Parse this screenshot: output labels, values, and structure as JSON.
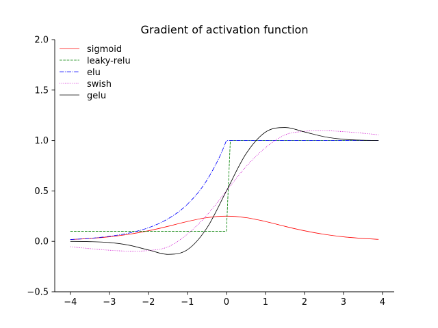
{
  "chart_data": {
    "type": "line",
    "title": "Gradient of activation function",
    "xlabel": "",
    "ylabel": "",
    "xlim": [
      -4.4,
      4.3
    ],
    "ylim": [
      -0.5,
      2.0
    ],
    "xticks": [
      -4,
      -3,
      -2,
      -1,
      0,
      1,
      2,
      3,
      4
    ],
    "xtick_labels": [
      "−4",
      "−3",
      "−2",
      "−1",
      "0",
      "1",
      "2",
      "3",
      "4"
    ],
    "yticks": [
      -0.5,
      0.0,
      0.5,
      1.0,
      1.5,
      2.0
    ],
    "ytick_labels": [
      "−0.5",
      "0.0",
      "0.5",
      "1.0",
      "1.5",
      "2.0"
    ],
    "grid": false,
    "legend": "top-left",
    "spines": "left-bottom",
    "series": [
      {
        "name": "sigmoid",
        "color": "#ff0000",
        "dash": "solid",
        "x": [
          -4,
          -3.5,
          -3,
          -2.5,
          -2,
          -1.5,
          -1,
          -0.5,
          0,
          0.5,
          1,
          1.5,
          2,
          2.5,
          3,
          3.5,
          3.9
        ],
        "y": [
          0.018,
          0.029,
          0.045,
          0.07,
          0.105,
          0.149,
          0.197,
          0.235,
          0.25,
          0.235,
          0.197,
          0.149,
          0.105,
          0.07,
          0.045,
          0.029,
          0.02
        ]
      },
      {
        "name": "leaky-relu",
        "color": "#008000",
        "dash": "dashed",
        "x": [
          -4,
          0,
          0.1,
          3.9
        ],
        "y": [
          0.1,
          0.1,
          1.0,
          1.0
        ]
      },
      {
        "name": "elu",
        "color": "#0000ff",
        "dash": "dashdot",
        "x": [
          -4,
          -3.5,
          -3,
          -2.5,
          -2,
          -1.5,
          -1,
          -0.5,
          0,
          0.5,
          1,
          2,
          3,
          3.9
        ],
        "y": [
          0.018,
          0.03,
          0.05,
          0.082,
          0.135,
          0.223,
          0.368,
          0.607,
          1.0,
          1.0,
          1.0,
          1.0,
          1.0,
          1.0
        ]
      },
      {
        "name": "swish",
        "color": "#cc00cc",
        "dash": "dotted",
        "x": [
          -4,
          -3.5,
          -3,
          -2.5,
          -2,
          -1.5,
          -1,
          -0.5,
          0,
          0.5,
          1,
          1.5,
          2,
          2.5,
          3,
          3.5,
          3.9
        ],
        "y": [
          -0.053,
          -0.072,
          -0.088,
          -0.097,
          -0.091,
          -0.055,
          0.072,
          0.26,
          0.5,
          0.74,
          0.928,
          1.055,
          1.091,
          1.097,
          1.088,
          1.072,
          1.056
        ]
      },
      {
        "name": "gelu",
        "color": "#000000",
        "dash": "solid",
        "x": [
          -4,
          -3.5,
          -3,
          -2.5,
          -2,
          -1.5,
          -1,
          -0.5,
          0,
          0.5,
          1,
          1.5,
          2,
          2.5,
          3,
          3.5,
          3.9
        ],
        "y": [
          -0.0005,
          -0.003,
          -0.012,
          -0.038,
          -0.085,
          -0.129,
          -0.083,
          0.133,
          0.5,
          0.867,
          1.083,
          1.129,
          1.085,
          1.038,
          1.012,
          1.003,
          1.0005
        ]
      }
    ]
  }
}
